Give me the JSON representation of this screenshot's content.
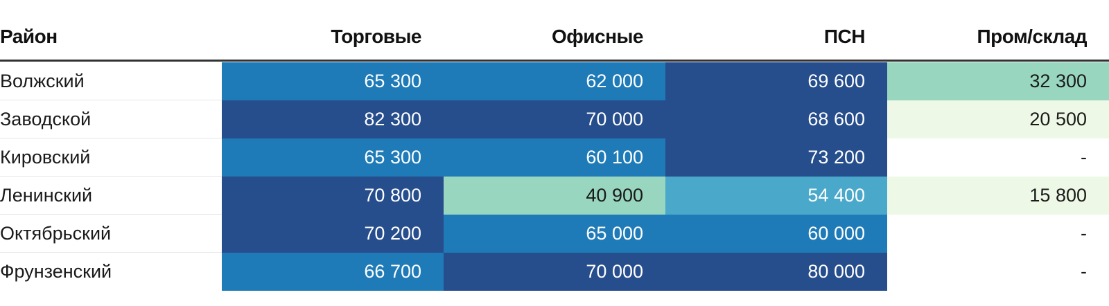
{
  "chart_data": {
    "type": "heatmap",
    "columns": [
      "Район",
      "Торговые",
      "Офисные",
      "ПСН",
      "Пром/склад"
    ],
    "rows": [
      {
        "label": "Волжский",
        "values": [
          "65 300",
          "62 000",
          "69 600",
          "32 300"
        ],
        "numeric": [
          65300,
          62000,
          69600,
          32300
        ]
      },
      {
        "label": "Заводской",
        "values": [
          "82 300",
          "70 000",
          "68 600",
          "20 500"
        ],
        "numeric": [
          82300,
          70000,
          68600,
          20500
        ]
      },
      {
        "label": "Кировский",
        "values": [
          "65 300",
          "60 100",
          "73 200",
          "-"
        ],
        "numeric": [
          65300,
          60100,
          73200,
          null
        ]
      },
      {
        "label": "Ленинский",
        "values": [
          "70 800",
          "40 900",
          "54 400",
          "15 800"
        ],
        "numeric": [
          70800,
          40900,
          54400,
          15800
        ]
      },
      {
        "label": "Октябрьский",
        "values": [
          "70 200",
          "65 000",
          "60 000",
          "-"
        ],
        "numeric": [
          70200,
          65000,
          60000,
          null
        ]
      },
      {
        "label": "Фрунзенский",
        "values": [
          "66 700",
          "70 000",
          "80 000",
          "-"
        ],
        "numeric": [
          66700,
          70000,
          80000,
          null
        ]
      }
    ],
    "colors": {
      "bin_0": "#eef8e6",
      "bin_1": "#98d6c0",
      "bin_2": "#4aa8ca",
      "bin_3": "#1f7bb8",
      "bin_4": "#264d8c",
      "empty": "#ffffff"
    }
  }
}
